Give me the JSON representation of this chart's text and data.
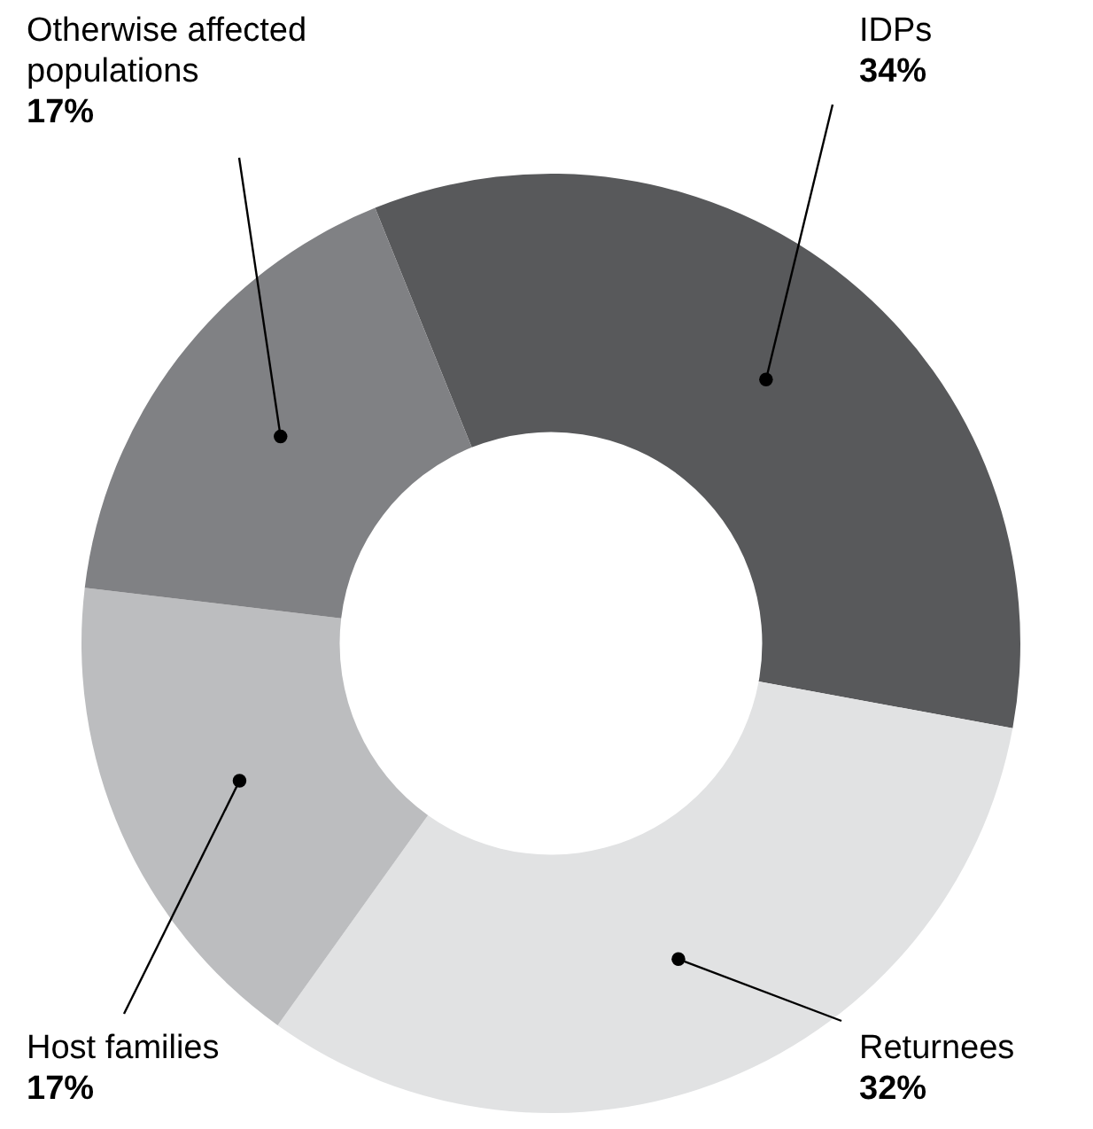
{
  "chart_data": {
    "type": "donut",
    "categories": [
      "IDPs",
      "Returnees",
      "Host families",
      "Otherwise affected populations"
    ],
    "values": [
      34,
      32,
      17,
      17
    ],
    "colors": [
      "#58595b",
      "#e1e2e3",
      "#bcbdbf",
      "#808184"
    ],
    "value_labels": [
      "34%",
      "32%",
      "17%",
      "17%"
    ]
  }
}
